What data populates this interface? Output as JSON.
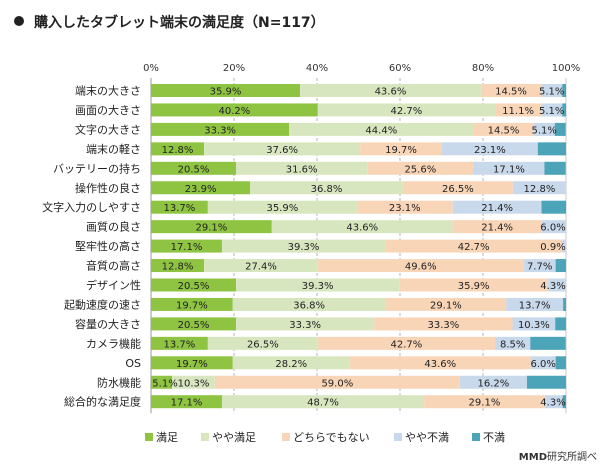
{
  "page": {
    "title": "購入したタブレット端末の満足度（N=117）",
    "credit_brand": "MMD",
    "credit_text": "研究所調べ"
  },
  "chart_data": {
    "type": "bar",
    "orientation": "horizontal",
    "stacked": true,
    "percent_scale": true,
    "title": "購入したタブレット端末の満足度（N=117）",
    "xlim": [
      0,
      100
    ],
    "xticks": [
      "0%",
      "20%",
      "40%",
      "60%",
      "80%",
      "100%"
    ],
    "legend_position": "bottom",
    "categories": [
      "端末の大きさ",
      "画面の大きさ",
      "文字の大きさ",
      "端末の軽さ",
      "バッテリーの持ち",
      "操作性の良さ",
      "文字入力のしやすさ",
      "画質の良さ",
      "堅牢性の高さ",
      "音質の高さ",
      "デザイン性",
      "起動速度の速さ",
      "容量の大きさ",
      "カメラ機能",
      "OS",
      "防水機能",
      "総合的な満足度"
    ],
    "series": [
      {
        "name": "満足",
        "color": "#8fc442",
        "values": [
          35.9,
          40.2,
          33.3,
          12.8,
          20.5,
          23.9,
          13.7,
          29.1,
          17.1,
          12.8,
          20.5,
          19.7,
          20.5,
          13.7,
          19.7,
          5.1,
          17.1
        ],
        "labels": [
          "35.9%",
          "40.2%",
          "33.3%",
          "12.8%",
          "20.5%",
          "23.9%",
          "13.7%",
          "29.1%",
          "17.1%",
          "12.8%",
          "20.5%",
          "19.7%",
          "20.5%",
          "13.7%",
          "19.7%",
          "5.1%",
          "17.1%"
        ]
      },
      {
        "name": "やや満足",
        "color": "#d8e6c0",
        "values": [
          43.6,
          42.7,
          44.4,
          37.6,
          31.6,
          36.8,
          35.9,
          43.6,
          39.3,
          27.4,
          39.3,
          36.8,
          33.3,
          26.5,
          28.2,
          10.3,
          48.7
        ],
        "labels": [
          "43.6%",
          "42.7%",
          "44.4%",
          "37.6%",
          "31.6%",
          "36.8%",
          "35.9%",
          "43.6%",
          "39.3%",
          "27.4%",
          "39.3%",
          "36.8%",
          "33.3%",
          "26.5%",
          "28.2%",
          "10.3%",
          "48.7%"
        ]
      },
      {
        "name": "どちらでもない",
        "color": "#f9d5b8",
        "values": [
          14.5,
          11.1,
          14.5,
          19.7,
          25.6,
          26.5,
          23.1,
          21.4,
          42.7,
          49.6,
          35.9,
          29.1,
          33.3,
          42.7,
          43.6,
          59.0,
          29.1
        ],
        "labels": [
          "14.5%",
          "11.1%",
          "14.5%",
          "19.7%",
          "25.6%",
          "26.5%",
          "23.1%",
          "21.4%",
          "42.7%",
          "49.6%",
          "35.9%",
          "29.1%",
          "33.3%",
          "42.7%",
          "43.6%",
          "59.0%",
          "29.1%"
        ]
      },
      {
        "name": "やや不満",
        "color": "#c9d9ec",
        "values": [
          5.1,
          5.1,
          5.1,
          23.1,
          17.1,
          12.8,
          21.4,
          6.0,
          0.9,
          7.7,
          4.3,
          13.7,
          10.3,
          8.5,
          6.0,
          16.2,
          4.3
        ],
        "labels": [
          "5.1%",
          "5.1%",
          "5.1%",
          "23.1%",
          "17.1%",
          "12.8%",
          "21.4%",
          "6.0%",
          "0.9%",
          "7.7%",
          "4.3%",
          "13.7%",
          "10.3%",
          "8.5%",
          "6.0%",
          "16.2%",
          "4.3%"
        ]
      },
      {
        "name": "不満",
        "color": "#4ba4b8",
        "values": [
          0.9,
          0.9,
          2.6,
          6.8,
          5.1,
          0.0,
          6.0,
          0.0,
          0.0,
          2.6,
          0.0,
          0.9,
          2.6,
          8.5,
          2.6,
          9.4,
          0.9
        ],
        "labels": [
          "",
          "",
          "",
          "",
          "",
          "",
          "",
          "",
          "",
          "",
          "",
          "",
          "",
          "",
          "",
          "",
          ""
        ]
      }
    ]
  }
}
